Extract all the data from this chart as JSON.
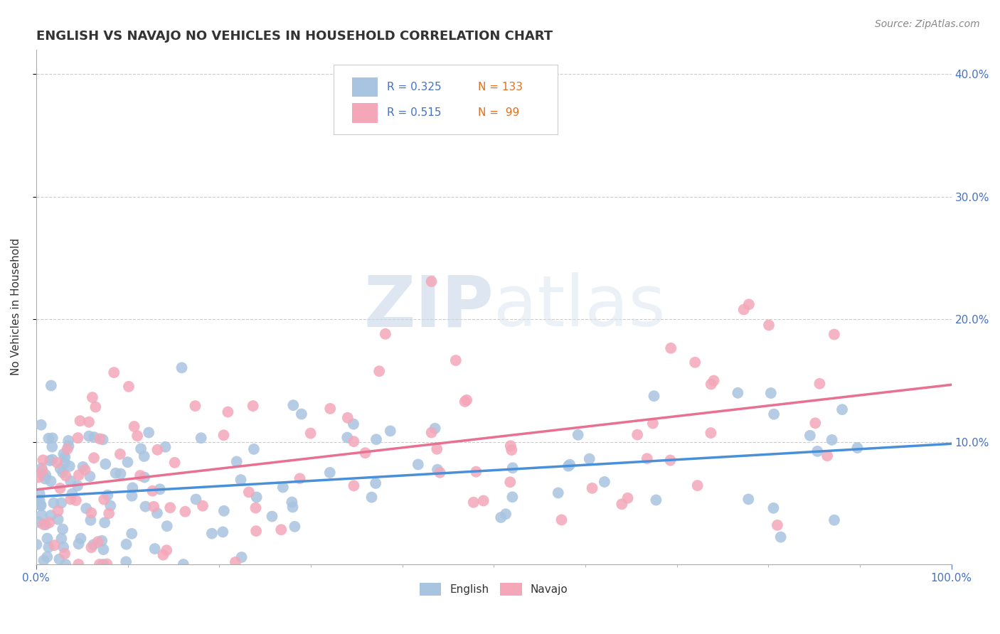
{
  "title": "ENGLISH VS NAVAJO NO VEHICLES IN HOUSEHOLD CORRELATION CHART",
  "source": "Source: ZipAtlas.com",
  "ylabel": "No Vehicles in Household",
  "xlim": [
    0,
    100
  ],
  "ylim": [
    0,
    42
  ],
  "english_color": "#a8c4e0",
  "navajo_color": "#f4a7b9",
  "english_line_color": "#4a90d9",
  "navajo_line_color": "#e87090",
  "legend_english_r": "R = 0.325",
  "legend_english_n": "N = 133",
  "legend_navajo_r": "R = 0.515",
  "legend_navajo_n": "N =  99",
  "english_n": 133,
  "navajo_n": 99,
  "background_color": "#ffffff",
  "grid_color": "#cccccc",
  "watermark_zip": "ZIP",
  "watermark_atlas": "atlas",
  "title_fontsize": 13,
  "label_fontsize": 11,
  "tick_fontsize": 11,
  "source_fontsize": 10
}
